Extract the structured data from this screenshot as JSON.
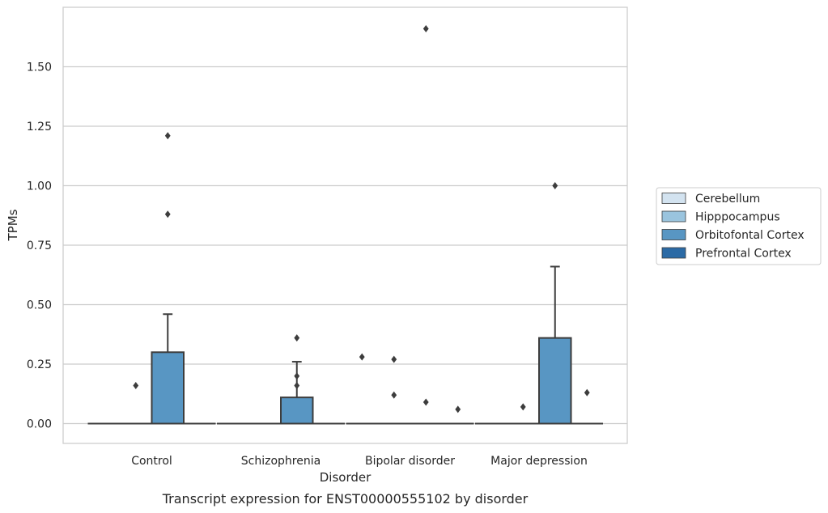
{
  "chart_data": {
    "type": "box",
    "caption": "Transcript expression for ENST00000555102 by disorder",
    "xlabel": "Disorder",
    "ylabel": "TPMs",
    "ylim": [
      -0.08,
      1.74
    ],
    "yticks": [
      0.0,
      0.25,
      0.5,
      0.75,
      1.0,
      1.25,
      1.5
    ],
    "ytick_labels": [
      "0.00",
      "0.25",
      "0.50",
      "0.75",
      "1.00",
      "1.25",
      "1.50"
    ],
    "grid": true,
    "legend_position": "right",
    "categories": [
      "Control",
      "Schizophrenia",
      "Bipolar disorder",
      "Major depression"
    ],
    "series": [
      {
        "name": "Cerebellum",
        "color": "#d3e3f0",
        "boxes": [
          {
            "q1": 0,
            "median": 0,
            "q3": 0,
            "whisker_low": 0,
            "whisker_high": 0,
            "outliers": []
          },
          {
            "q1": 0,
            "median": 0,
            "q3": 0,
            "whisker_low": 0,
            "whisker_high": 0,
            "outliers": []
          },
          {
            "q1": 0,
            "median": 0,
            "q3": 0,
            "whisker_low": 0,
            "whisker_high": 0,
            "outliers": [
              0.28
            ]
          },
          {
            "q1": 0,
            "median": 0,
            "q3": 0,
            "whisker_low": 0,
            "whisker_high": 0,
            "outliers": []
          }
        ]
      },
      {
        "name": "Hipppocampus",
        "color": "#9ac4de",
        "boxes": [
          {
            "q1": 0,
            "median": 0,
            "q3": 0,
            "whisker_low": 0,
            "whisker_high": 0,
            "outliers": [
              0.16
            ]
          },
          {
            "q1": 0,
            "median": 0,
            "q3": 0,
            "whisker_low": 0,
            "whisker_high": 0,
            "outliers": []
          },
          {
            "q1": 0,
            "median": 0,
            "q3": 0,
            "whisker_low": 0,
            "whisker_high": 0,
            "outliers": [
              0.27,
              0.12
            ]
          },
          {
            "q1": 0,
            "median": 0,
            "q3": 0,
            "whisker_low": 0,
            "whisker_high": 0,
            "outliers": [
              0.07
            ]
          }
        ]
      },
      {
        "name": "Orbitofontal Cortex",
        "color": "#5896c3",
        "boxes": [
          {
            "q1": 0,
            "median": 0,
            "q3": 0.3,
            "whisker_low": 0,
            "whisker_high": 0.46,
            "outliers": [
              0.88,
              1.21
            ]
          },
          {
            "q1": 0,
            "median": 0,
            "q3": 0.11,
            "whisker_low": 0,
            "whisker_high": 0.26,
            "outliers": [
              0.16,
              0.2,
              0.36
            ]
          },
          {
            "q1": 0,
            "median": 0,
            "q3": 0,
            "whisker_low": 0,
            "whisker_high": 0,
            "outliers": [
              1.66,
              0.09
            ]
          },
          {
            "q1": 0,
            "median": 0,
            "q3": 0.36,
            "whisker_low": 0,
            "whisker_high": 0.66,
            "outliers": [
              1.0
            ]
          }
        ]
      },
      {
        "name": "Prefrontal Cortex",
        "color": "#2b6aa5",
        "boxes": [
          {
            "q1": 0,
            "median": 0,
            "q3": 0,
            "whisker_low": 0,
            "whisker_high": 0,
            "outliers": []
          },
          {
            "q1": 0,
            "median": 0,
            "q3": 0,
            "whisker_low": 0,
            "whisker_high": 0,
            "outliers": []
          },
          {
            "q1": 0,
            "median": 0,
            "q3": 0,
            "whisker_low": 0,
            "whisker_high": 0,
            "outliers": [
              0.06
            ]
          },
          {
            "q1": 0,
            "median": 0,
            "q3": 0,
            "whisker_low": 0,
            "whisker_high": 0,
            "outliers": [
              0.13
            ]
          }
        ]
      }
    ]
  }
}
